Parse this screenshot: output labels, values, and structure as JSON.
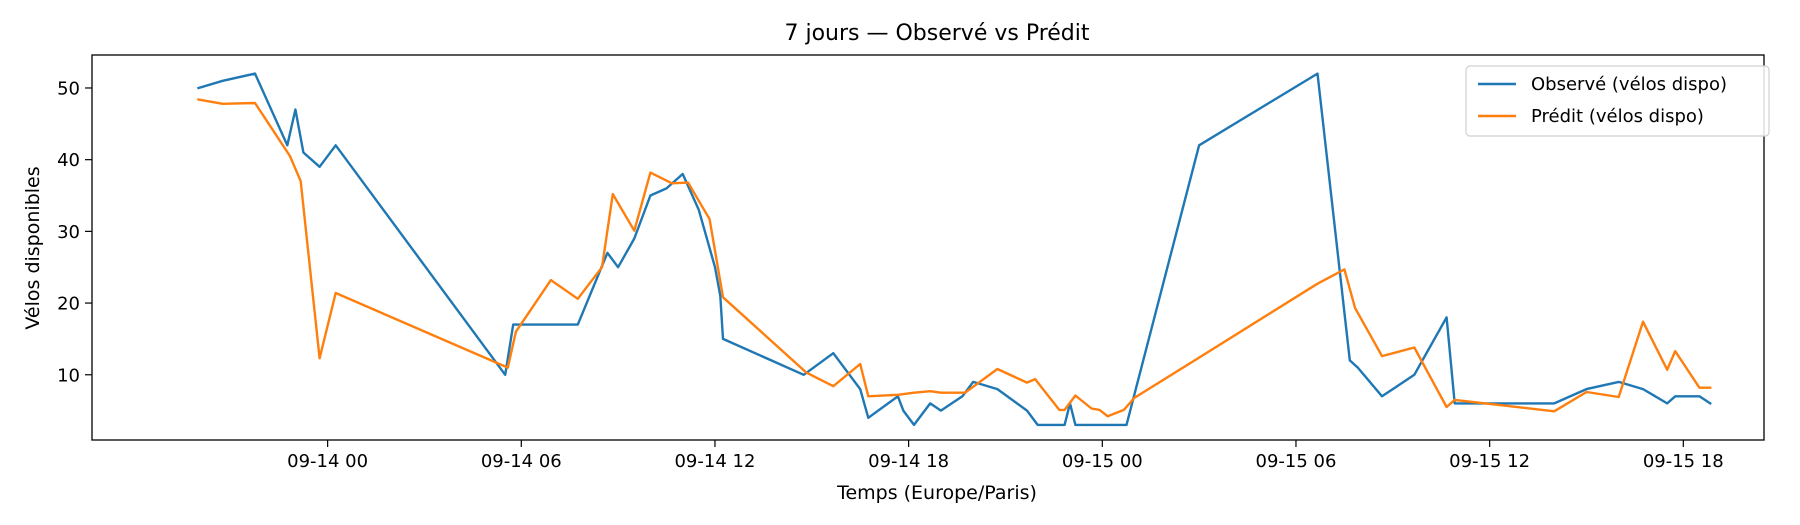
{
  "chart_data": {
    "type": "line",
    "title": "7 jours — Observé vs Prédit",
    "xlabel": "Temps (Europe/Paris)",
    "ylabel": "Vélos disponibles",
    "xlim": [
      "2024-09-13T16:42",
      "2024-09-15T20:30"
    ],
    "ylim": [
      0.9,
      54.6
    ],
    "x_ticks": [
      {
        "t": "2024-09-14T00:00",
        "label": "09-14 00"
      },
      {
        "t": "2024-09-14T06:00",
        "label": "09-14 06"
      },
      {
        "t": "2024-09-14T12:00",
        "label": "09-14 12"
      },
      {
        "t": "2024-09-14T18:00",
        "label": "09-14 18"
      },
      {
        "t": "2024-09-15T00:00",
        "label": "09-15 00"
      },
      {
        "t": "2024-09-15T06:00",
        "label": "09-15 06"
      },
      {
        "t": "2024-09-15T12:00",
        "label": "09-15 12"
      },
      {
        "t": "2024-09-15T18:00",
        "label": "09-15 18"
      }
    ],
    "y_ticks": [
      {
        "v": 10,
        "label": "10"
      },
      {
        "v": 20,
        "label": "20"
      },
      {
        "v": 30,
        "label": "30"
      },
      {
        "v": 40,
        "label": "40"
      },
      {
        "v": 50,
        "label": "50"
      }
    ],
    "grid": false,
    "legend_position": "top-right",
    "series": [
      {
        "name": "Observé (vélos dispo)",
        "color": "#1f77b4",
        "points": [
          [
            "2024-09-13T20:00",
            50
          ],
          [
            "2024-09-13T20:45",
            51
          ],
          [
            "2024-09-13T21:45",
            52
          ],
          [
            "2024-09-13T22:45",
            42
          ],
          [
            "2024-09-13T23:00",
            47
          ],
          [
            "2024-09-13T23:15",
            41
          ],
          [
            "2024-09-13T23:45",
            39
          ],
          [
            "2024-09-14T00:15",
            42
          ],
          [
            "2024-09-14T05:30",
            10
          ],
          [
            "2024-09-14T05:45",
            17
          ],
          [
            "2024-09-14T07:45",
            17
          ],
          [
            "2024-09-14T08:40",
            27
          ],
          [
            "2024-09-14T09:00",
            25
          ],
          [
            "2024-09-14T09:30",
            29
          ],
          [
            "2024-09-14T10:00",
            35
          ],
          [
            "2024-09-14T10:30",
            36
          ],
          [
            "2024-09-14T11:00",
            38
          ],
          [
            "2024-09-14T11:30",
            33
          ],
          [
            "2024-09-14T12:00",
            25
          ],
          [
            "2024-09-14T12:10",
            21
          ],
          [
            "2024-09-14T12:15",
            15
          ],
          [
            "2024-09-14T14:45",
            10
          ],
          [
            "2024-09-14T15:40",
            13
          ],
          [
            "2024-09-14T16:30",
            8
          ],
          [
            "2024-09-14T16:45",
            4
          ],
          [
            "2024-09-14T17:40",
            7
          ],
          [
            "2024-09-14T17:50",
            5
          ],
          [
            "2024-09-14T18:10",
            3
          ],
          [
            "2024-09-14T18:40",
            6
          ],
          [
            "2024-09-14T19:00",
            5
          ],
          [
            "2024-09-14T19:40",
            7
          ],
          [
            "2024-09-14T20:00",
            9
          ],
          [
            "2024-09-14T20:45",
            8
          ],
          [
            "2024-09-14T21:40",
            5
          ],
          [
            "2024-09-14T22:00",
            3
          ],
          [
            "2024-09-14T22:50",
            3
          ],
          [
            "2024-09-14T23:00",
            6
          ],
          [
            "2024-09-14T23:10",
            3
          ],
          [
            "2024-09-15T00:45",
            3
          ],
          [
            "2024-09-15T03:00",
            42
          ],
          [
            "2024-09-15T06:40",
            52
          ],
          [
            "2024-09-15T07:40",
            12
          ],
          [
            "2024-09-15T07:55",
            11
          ],
          [
            "2024-09-15T08:40",
            7
          ],
          [
            "2024-09-15T09:40",
            10
          ],
          [
            "2024-09-15T10:40",
            18
          ],
          [
            "2024-09-15T10:55",
            6
          ],
          [
            "2024-09-15T14:00",
            6
          ],
          [
            "2024-09-15T15:00",
            8
          ],
          [
            "2024-09-15T16:00",
            9
          ],
          [
            "2024-09-15T16:45",
            8
          ],
          [
            "2024-09-15T17:30",
            6
          ],
          [
            "2024-09-15T17:45",
            7
          ],
          [
            "2024-09-15T18:30",
            7
          ],
          [
            "2024-09-15T18:50",
            6
          ]
        ]
      },
      {
        "name": "Prédit (vélos dispo)",
        "color": "#ff7f0e",
        "points": [
          [
            "2024-09-13T20:00",
            48.4
          ],
          [
            "2024-09-13T20:45",
            47.8
          ],
          [
            "2024-09-13T21:45",
            47.9
          ],
          [
            "2024-09-13T22:50",
            40.5
          ],
          [
            "2024-09-13T23:10",
            37
          ],
          [
            "2024-09-13T23:45",
            12.3
          ],
          [
            "2024-09-14T00:15",
            21.4
          ],
          [
            "2024-09-14T05:35",
            11
          ],
          [
            "2024-09-14T05:50",
            16
          ],
          [
            "2024-09-14T06:55",
            23.2
          ],
          [
            "2024-09-14T07:45",
            20.6
          ],
          [
            "2024-09-14T08:30",
            25
          ],
          [
            "2024-09-14T08:50",
            35.2
          ],
          [
            "2024-09-14T09:30",
            30.1
          ],
          [
            "2024-09-14T10:00",
            38.2
          ],
          [
            "2024-09-14T10:40",
            36.7
          ],
          [
            "2024-09-14T11:10",
            36.8
          ],
          [
            "2024-09-14T11:50",
            31.7
          ],
          [
            "2024-09-14T12:15",
            20.8
          ],
          [
            "2024-09-14T14:50",
            10.3
          ],
          [
            "2024-09-14T15:40",
            8.4
          ],
          [
            "2024-09-14T16:30",
            11.5
          ],
          [
            "2024-09-14T16:45",
            7
          ],
          [
            "2024-09-14T17:40",
            7.2
          ],
          [
            "2024-09-14T18:10",
            7.5
          ],
          [
            "2024-09-14T18:40",
            7.7
          ],
          [
            "2024-09-14T19:00",
            7.5
          ],
          [
            "2024-09-14T19:45",
            7.5
          ],
          [
            "2024-09-14T20:45",
            10.8
          ],
          [
            "2024-09-14T21:40",
            8.9
          ],
          [
            "2024-09-14T21:55",
            9.4
          ],
          [
            "2024-09-14T22:40",
            5.1
          ],
          [
            "2024-09-14T22:50",
            5.1
          ],
          [
            "2024-09-14T23:10",
            7.1
          ],
          [
            "2024-09-14T23:40",
            5.3
          ],
          [
            "2024-09-14T23:55",
            5.1
          ],
          [
            "2024-09-15T00:10",
            4.2
          ],
          [
            "2024-09-15T00:40",
            5.1
          ],
          [
            "2024-09-15T01:00",
            6.8
          ],
          [
            "2024-09-15T03:00",
            12.4
          ],
          [
            "2024-09-15T06:40",
            22.7
          ],
          [
            "2024-09-15T07:30",
            24.7
          ],
          [
            "2024-09-15T07:50",
            19.3
          ],
          [
            "2024-09-15T08:40",
            12.6
          ],
          [
            "2024-09-15T09:40",
            13.8
          ],
          [
            "2024-09-15T10:40",
            5.5
          ],
          [
            "2024-09-15T10:55",
            6.5
          ],
          [
            "2024-09-15T14:00",
            4.9
          ],
          [
            "2024-09-15T15:00",
            7.6
          ],
          [
            "2024-09-15T16:00",
            6.9
          ],
          [
            "2024-09-15T16:45",
            17.4
          ],
          [
            "2024-09-15T17:30",
            10.7
          ],
          [
            "2024-09-15T17:45",
            13.3
          ],
          [
            "2024-09-15T18:30",
            8.2
          ],
          [
            "2024-09-15T18:50",
            8.2
          ]
        ]
      }
    ]
  }
}
